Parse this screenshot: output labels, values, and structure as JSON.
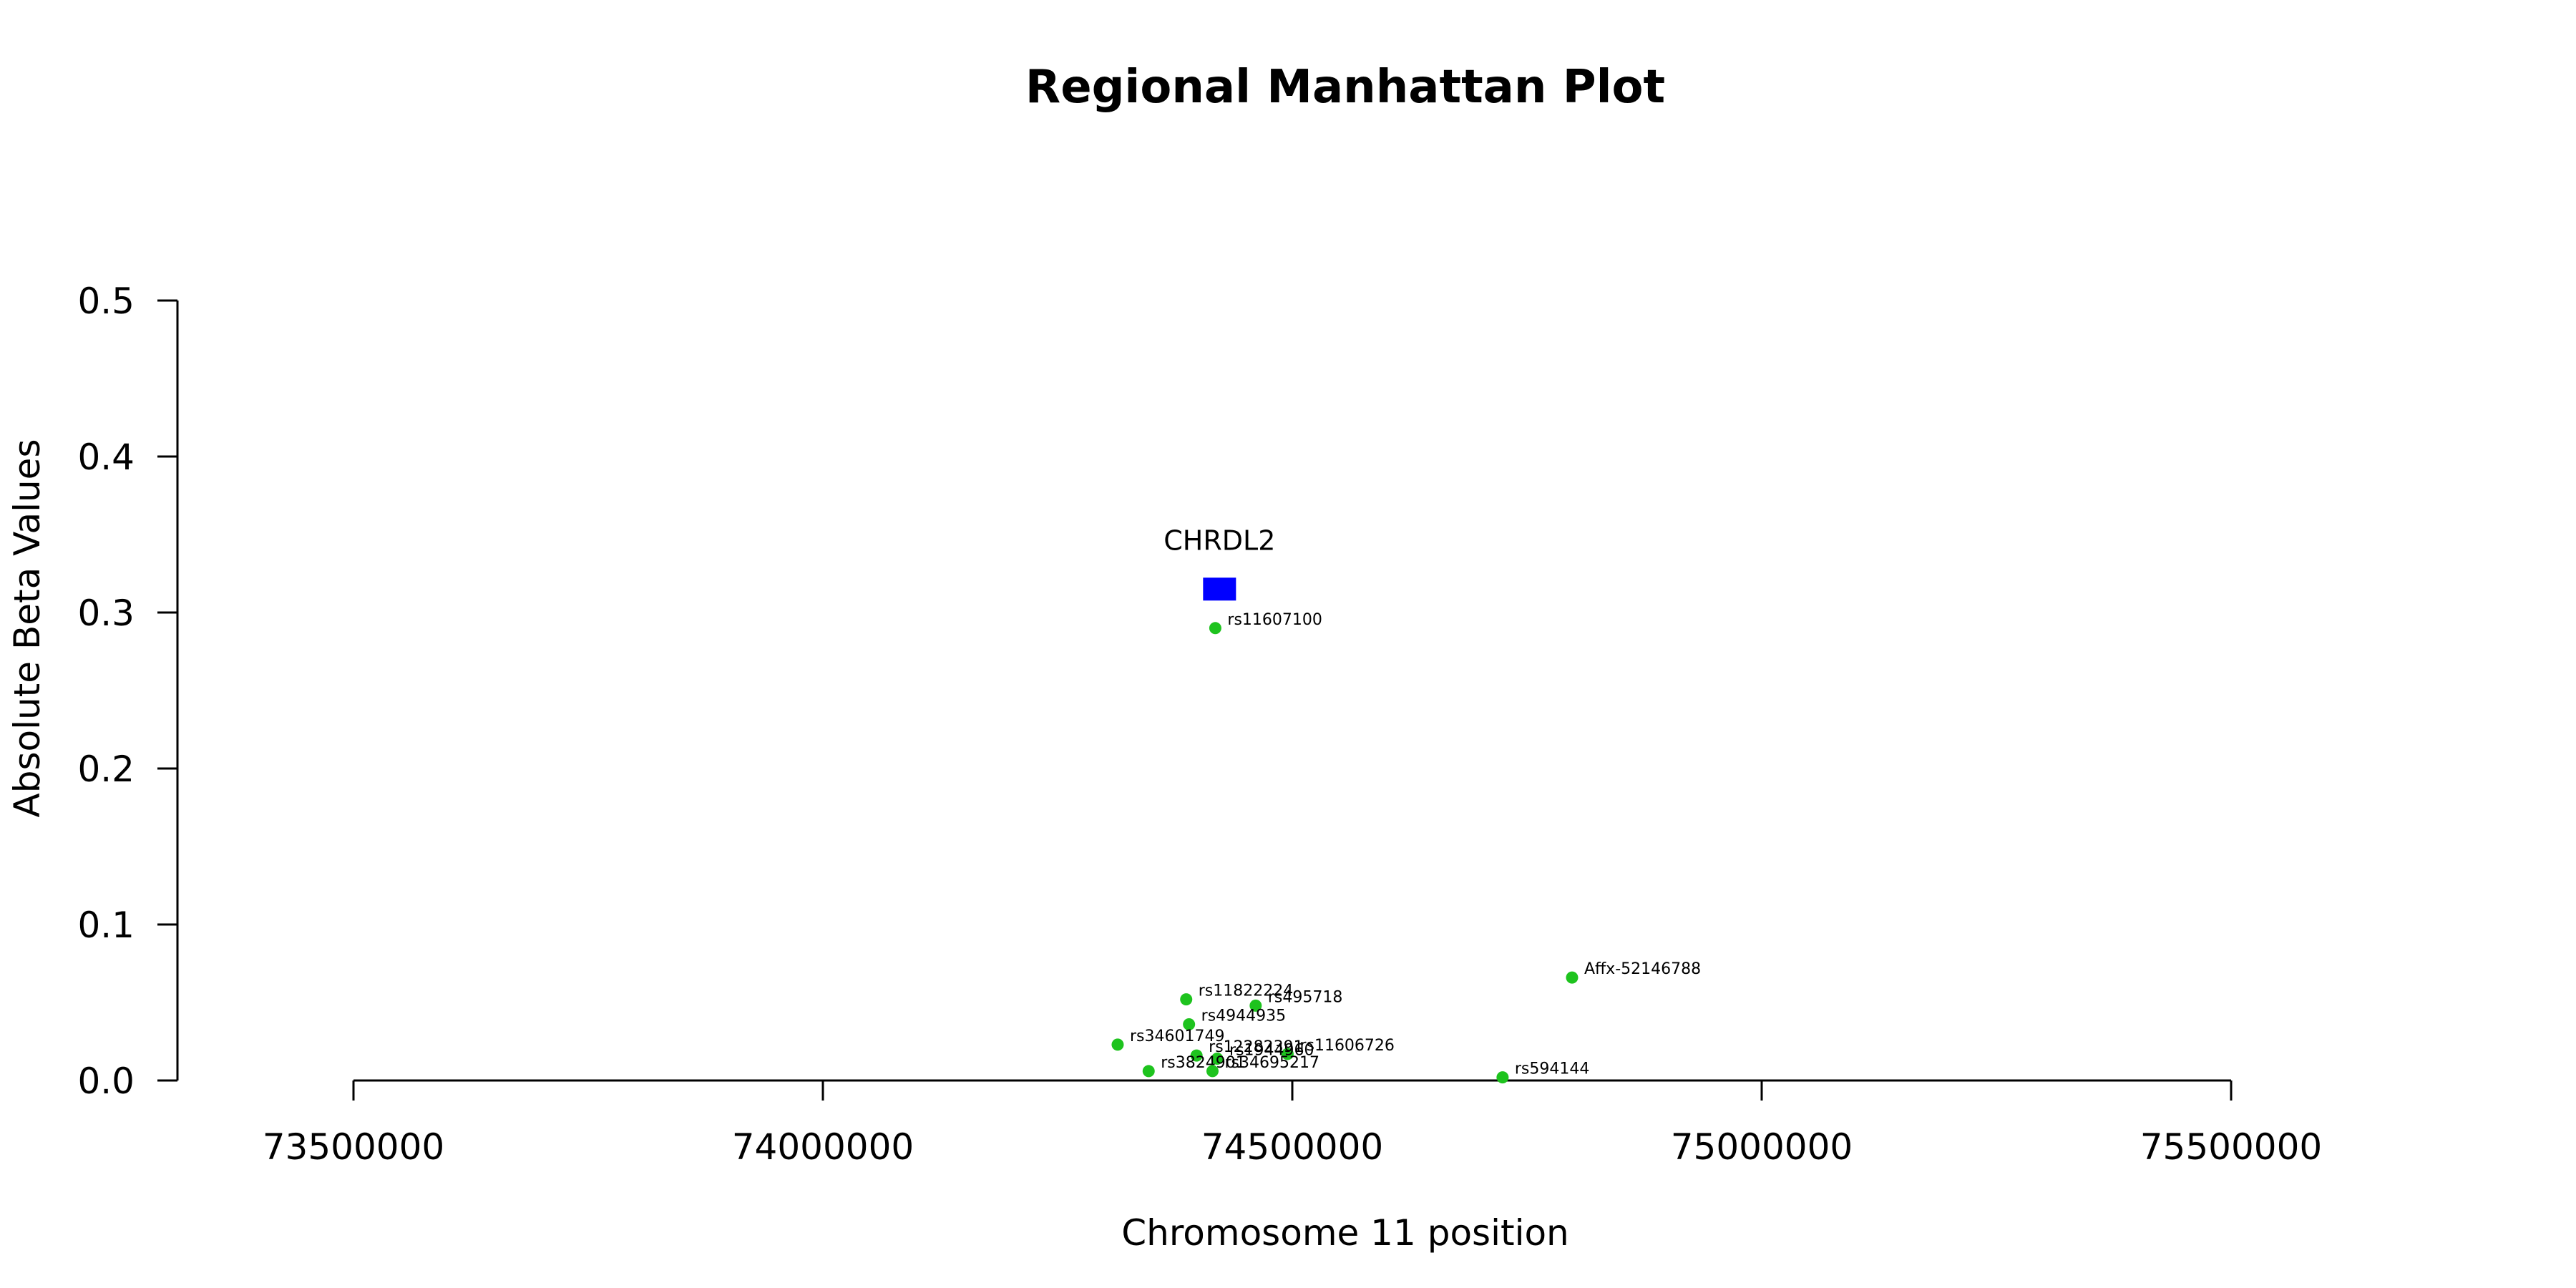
{
  "chart_data": {
    "type": "scatter",
    "title": "Regional Manhattan Plot",
    "xlabel": "Chromosome 11 position",
    "ylabel": "Absolute Beta Values",
    "xlim": [
      73310000,
      75760000
    ],
    "ylim": [
      0,
      0.5
    ],
    "xticks": [
      73500000,
      74000000,
      74500000,
      75000000,
      75500000
    ],
    "yticks": [
      0.0,
      0.1,
      0.2,
      0.3,
      0.4,
      0.5
    ],
    "xtick_labels": [
      "73500000",
      "74000000",
      "74500000",
      "75000000",
      "75500000"
    ],
    "ytick_labels": [
      "0.0",
      "0.1",
      "0.2",
      "0.3",
      "0.4",
      "0.5"
    ],
    "grid": false,
    "point_color": "#1ec31e",
    "gene_color": "#0000ff",
    "genes": [
      {
        "name": "CHRDL2",
        "start": 74405000,
        "end": 74440000,
        "y": 0.315
      }
    ],
    "points": [
      {
        "label": "rs11607100",
        "x": 74418000,
        "y": 0.29
      },
      {
        "label": "Affx-52146788",
        "x": 74798000,
        "y": 0.066
      },
      {
        "label": "rs11822224",
        "x": 74387000,
        "y": 0.052
      },
      {
        "label": "rs495718",
        "x": 74461000,
        "y": 0.048
      },
      {
        "label": "rs4944935",
        "x": 74390000,
        "y": 0.036
      },
      {
        "label": "rs34601749",
        "x": 74314000,
        "y": 0.023
      },
      {
        "label": "rs11606726",
        "x": 74495000,
        "y": 0.017
      },
      {
        "label": "rs12282391",
        "x": 74398000,
        "y": 0.016
      },
      {
        "label": "rs1944960",
        "x": 74420000,
        "y": 0.014
      },
      {
        "label": "rs3824901",
        "x": 74347000,
        "y": 0.006
      },
      {
        "label": "rs34695217",
        "x": 74415000,
        "y": 0.006
      },
      {
        "label": "rs594144",
        "x": 74724000,
        "y": 0.002
      }
    ]
  }
}
